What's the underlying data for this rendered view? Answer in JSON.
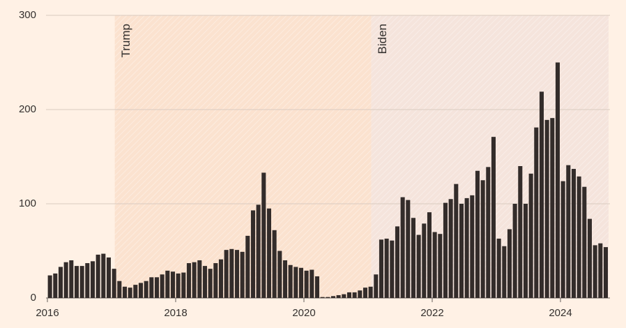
{
  "chart_data": {
    "type": "bar",
    "categories": [
      "2016",
      null,
      null,
      null,
      null,
      null,
      null,
      null,
      null,
      null,
      null,
      null,
      null,
      null,
      null,
      null,
      null,
      null,
      null,
      null,
      null,
      null,
      null,
      null,
      "2018",
      null,
      null,
      null,
      null,
      null,
      null,
      null,
      null,
      null,
      null,
      null,
      null,
      null,
      null,
      null,
      null,
      null,
      null,
      null,
      null,
      null,
      null,
      null,
      "2020",
      null,
      null,
      null,
      null,
      null,
      null,
      null,
      null,
      null,
      null,
      null,
      null,
      null,
      null,
      null,
      null,
      null,
      null,
      null,
      null,
      null,
      null,
      null,
      "2022",
      null,
      null,
      null,
      null,
      null,
      null,
      null,
      null,
      null,
      null,
      null,
      null,
      null,
      null,
      null,
      null,
      null,
      null,
      null,
      null,
      null,
      null,
      null,
      "2024",
      null,
      null,
      null,
      null,
      null,
      null,
      null,
      null
    ],
    "values": [
      24,
      26,
      33,
      38,
      40,
      34,
      34,
      37,
      39,
      46,
      47,
      43,
      31,
      18,
      12,
      11,
      14,
      16,
      18,
      22,
      22,
      25,
      29,
      28,
      26,
      27,
      37,
      38,
      40,
      34,
      31,
      37,
      41,
      51,
      52,
      51,
      49,
      66,
      93,
      99,
      133,
      95,
      72,
      50,
      40,
      35,
      33,
      32,
      29,
      30,
      23,
      1,
      1,
      2,
      3,
      4,
      6,
      6,
      8,
      11,
      12,
      25,
      62,
      63,
      61,
      76,
      107,
      104,
      85,
      67,
      79,
      91,
      70,
      68,
      101,
      105,
      121,
      100,
      106,
      109,
      135,
      125,
      139,
      171,
      63,
      55,
      73,
      100,
      140,
      100,
      132,
      181,
      219,
      189,
      191,
      250,
      124,
      141,
      137,
      129,
      118,
      84,
      56,
      58,
      54
    ],
    "color": "#332c2a",
    "ylim": [
      0,
      300
    ],
    "yticks": [
      0,
      100,
      200,
      300
    ],
    "grid": true,
    "xlim": [
      2016,
      2024.75
    ],
    "periods": [
      {
        "label": "Trump",
        "start": 2017.05,
        "end": 2021.05,
        "color": "#fbe2cf"
      },
      {
        "label": "Biden",
        "start": 2021.05,
        "end": 2024.75,
        "color": "#f5e4dc"
      }
    ]
  }
}
